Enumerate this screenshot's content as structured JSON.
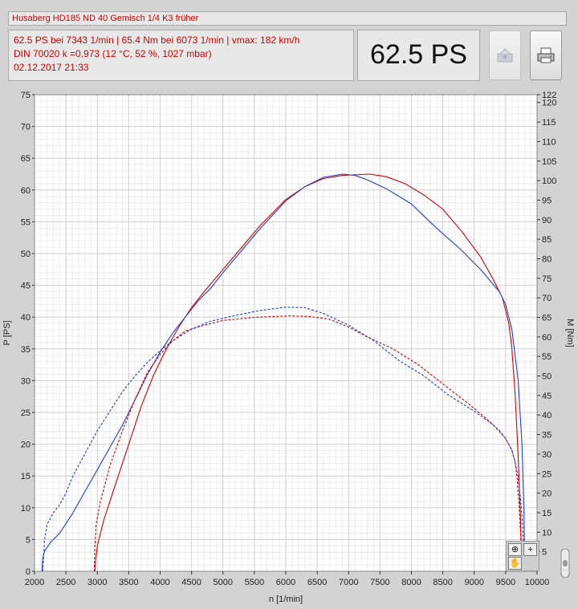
{
  "header": {
    "title": "Husaberg HD185 ND 40 Gemisch 1/4 K3 früher",
    "info_line1": "62.5 PS bei 7343 1/min   |   65.4 Nm bei 6073 1/min   |   vmax: 182 km/h",
    "info_line2": "DIN 70020 k =0.973 (12 °C, 52 %, 1027 mbar)",
    "info_line3": "02.12.2017 21:33",
    "big_value": "62.5 PS",
    "export_icon": "image-export-icon",
    "print_icon": "printer-icon"
  },
  "palette": {
    "zoom_icon": "zoom-icon",
    "crosshair_icon": "crosshair-icon",
    "pan_icon": "pan-hand-icon"
  },
  "chart_data": {
    "type": "line",
    "xlabel": "n [1/min]",
    "ylabel_left": "P [PS]",
    "ylabel_right": "M [Nm]",
    "xlim": [
      2000,
      10000
    ],
    "ylim_left": [
      0,
      75
    ],
    "ylim_right": [
      0,
      122
    ],
    "x_ticks": [
      2000,
      2500,
      3000,
      3500,
      4000,
      4500,
      5000,
      5500,
      6000,
      6500,
      7000,
      7500,
      8000,
      8500,
      9000,
      9500,
      10000
    ],
    "y_ticks_left": [
      0,
      5,
      10,
      15,
      20,
      25,
      30,
      35,
      40,
      45,
      50,
      55,
      60,
      65,
      70,
      75
    ],
    "y_ticks_right": [
      5,
      10,
      15,
      20,
      25,
      30,
      35,
      40,
      45,
      50,
      55,
      60,
      65,
      70,
      75,
      80,
      85,
      90,
      95,
      100,
      105,
      110,
      115,
      120,
      122
    ],
    "grid": true,
    "series": [
      {
        "color": "#d40000",
        "style": "solid",
        "axis": "left",
        "points": [
          [
            2960,
            0
          ],
          [
            2975,
            2
          ],
          [
            3000,
            4
          ],
          [
            3100,
            8
          ],
          [
            3200,
            11
          ],
          [
            3300,
            14
          ],
          [
            3500,
            20
          ],
          [
            3700,
            26
          ],
          [
            3900,
            31
          ],
          [
            4100,
            35
          ],
          [
            4300,
            38.5
          ],
          [
            4500,
            41.5
          ],
          [
            4700,
            44
          ],
          [
            5000,
            47.5
          ],
          [
            5300,
            51
          ],
          [
            5600,
            54.5
          ],
          [
            6000,
            58.5
          ],
          [
            6300,
            60.5
          ],
          [
            6600,
            61.8
          ],
          [
            6900,
            62.3
          ],
          [
            7343,
            62.5
          ],
          [
            7600,
            62.1
          ],
          [
            7900,
            61
          ],
          [
            8200,
            59.2
          ],
          [
            8500,
            57
          ],
          [
            8800,
            53.5
          ],
          [
            9100,
            49.5
          ],
          [
            9300,
            46
          ],
          [
            9450,
            43
          ],
          [
            9550,
            39
          ],
          [
            9600,
            35
          ],
          [
            9650,
            28
          ],
          [
            9700,
            18
          ],
          [
            9730,
            10
          ],
          [
            9750,
            4
          ],
          [
            9760,
            0
          ]
        ]
      },
      {
        "color": "#1f3fc9",
        "style": "solid",
        "axis": "left",
        "points": [
          [
            2120,
            0
          ],
          [
            2130,
            2
          ],
          [
            2160,
            3.2
          ],
          [
            2250,
            4.5
          ],
          [
            2400,
            6
          ],
          [
            2600,
            9
          ],
          [
            2800,
            12.5
          ],
          [
            3000,
            16
          ],
          [
            3200,
            19.5
          ],
          [
            3400,
            23
          ],
          [
            3600,
            27
          ],
          [
            3800,
            31
          ],
          [
            4000,
            34.5
          ],
          [
            4200,
            37.5
          ],
          [
            4400,
            40
          ],
          [
            4600,
            42.5
          ],
          [
            4800,
            44.5
          ],
          [
            5000,
            47
          ],
          [
            5300,
            50.5
          ],
          [
            5600,
            54
          ],
          [
            6000,
            58.3
          ],
          [
            6300,
            60.5
          ],
          [
            6600,
            62
          ],
          [
            6900,
            62.5
          ],
          [
            7100,
            62.3
          ],
          [
            7300,
            61.6
          ],
          [
            7600,
            60.2
          ],
          [
            8000,
            57.8
          ],
          [
            8400,
            54
          ],
          [
            8800,
            50.5
          ],
          [
            9100,
            47.5
          ],
          [
            9400,
            44
          ],
          [
            9500,
            42
          ],
          [
            9600,
            38
          ],
          [
            9700,
            30
          ],
          [
            9760,
            20
          ],
          [
            9790,
            10
          ],
          [
            9800,
            3
          ],
          [
            9805,
            0
          ]
        ]
      },
      {
        "color": "#d40000",
        "style": "dashed",
        "axis": "right",
        "points": [
          [
            2950,
            0
          ],
          [
            2960,
            6
          ],
          [
            2980,
            12
          ],
          [
            3050,
            18
          ],
          [
            3200,
            27
          ],
          [
            3400,
            36
          ],
          [
            3600,
            44
          ],
          [
            3800,
            51
          ],
          [
            4000,
            55.5
          ],
          [
            4200,
            59
          ],
          [
            4400,
            61.5
          ],
          [
            4700,
            63
          ],
          [
            5000,
            64.2
          ],
          [
            5500,
            65
          ],
          [
            6073,
            65.4
          ],
          [
            6400,
            65.2
          ],
          [
            6700,
            64.5
          ],
          [
            7000,
            62.5
          ],
          [
            7300,
            60
          ],
          [
            7700,
            57
          ],
          [
            8100,
            53
          ],
          [
            8500,
            48
          ],
          [
            8900,
            43
          ],
          [
            9200,
            39
          ],
          [
            9400,
            36
          ],
          [
            9500,
            34
          ],
          [
            9600,
            31
          ],
          [
            9650,
            28
          ],
          [
            9680,
            24
          ],
          [
            9700,
            20
          ],
          [
            9720,
            16
          ],
          [
            9730,
            12
          ],
          [
            9740,
            9
          ],
          [
            9745,
            6
          ],
          [
            9750,
            3
          ],
          [
            9752,
            0
          ]
        ]
      },
      {
        "color": "#1f3fc9",
        "style": "dashed",
        "axis": "right",
        "points": [
          [
            2130,
            0
          ],
          [
            2160,
            8
          ],
          [
            2200,
            12
          ],
          [
            2300,
            15
          ],
          [
            2400,
            17
          ],
          [
            2500,
            20
          ],
          [
            2600,
            24
          ],
          [
            2800,
            30
          ],
          [
            3000,
            36
          ],
          [
            3200,
            41
          ],
          [
            3400,
            46
          ],
          [
            3600,
            50
          ],
          [
            3800,
            53.5
          ],
          [
            4000,
            56.5
          ],
          [
            4200,
            59
          ],
          [
            4500,
            62
          ],
          [
            4800,
            64
          ],
          [
            5200,
            65.5
          ],
          [
            5600,
            66.8
          ],
          [
            6000,
            67.6
          ],
          [
            6300,
            67.5
          ],
          [
            6600,
            66
          ],
          [
            7000,
            63
          ],
          [
            7400,
            59
          ],
          [
            7800,
            54
          ],
          [
            8200,
            50
          ],
          [
            8600,
            45
          ],
          [
            9000,
            41
          ],
          [
            9300,
            37.5
          ],
          [
            9500,
            34
          ],
          [
            9600,
            31
          ],
          [
            9650,
            28
          ],
          [
            9700,
            24
          ],
          [
            9740,
            18
          ],
          [
            9770,
            12
          ],
          [
            9780,
            8
          ],
          [
            9790,
            4
          ],
          [
            9795,
            0
          ]
        ]
      }
    ]
  }
}
